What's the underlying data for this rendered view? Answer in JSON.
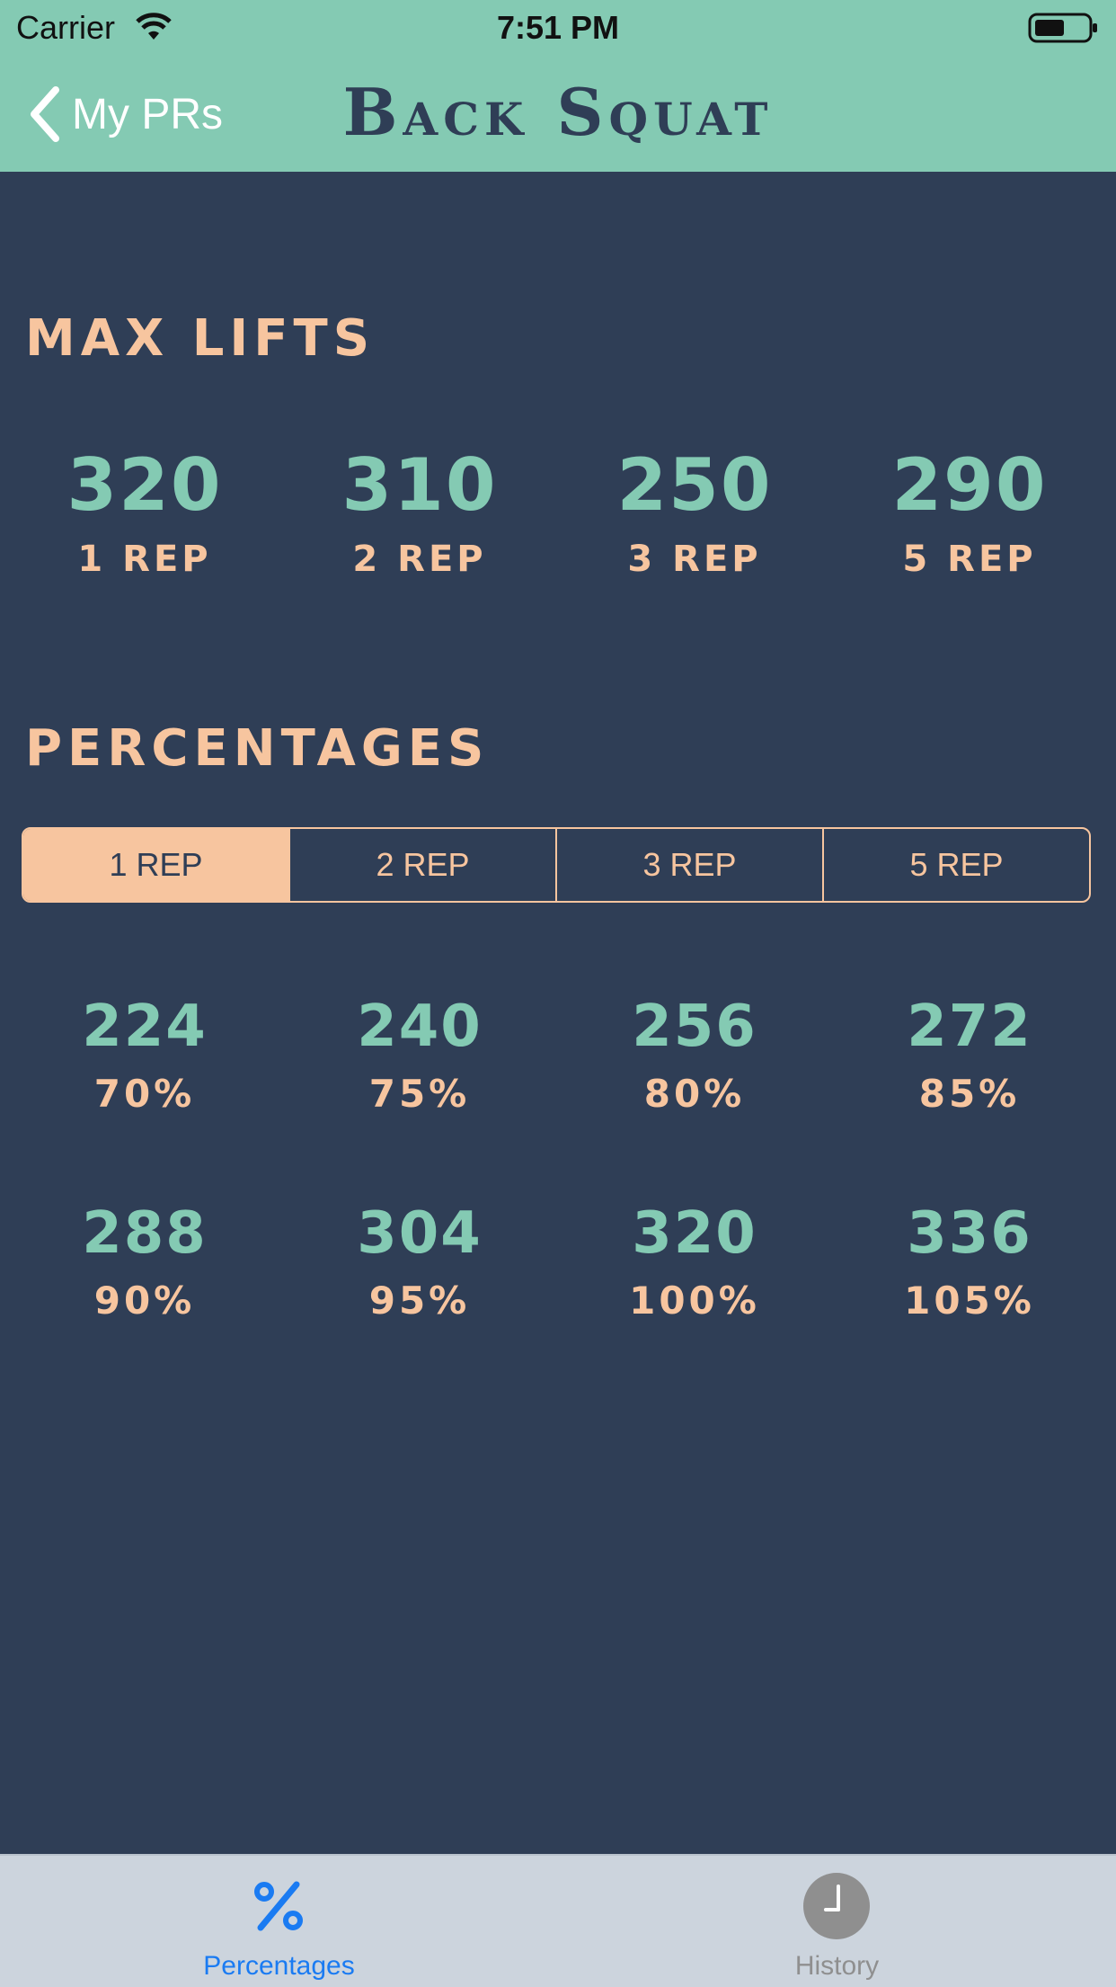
{
  "status_bar": {
    "carrier": "Carrier",
    "time": "7:51 PM"
  },
  "nav": {
    "back_label": "My PRs",
    "title": "Back Squat"
  },
  "max_lifts": {
    "title": "MAX LIFTS",
    "items": [
      {
        "value": "320",
        "label": "1 REP"
      },
      {
        "value": "310",
        "label": "2 REP"
      },
      {
        "value": "250",
        "label": "3 REP"
      },
      {
        "value": "290",
        "label": "5 REP"
      }
    ]
  },
  "percentages": {
    "title": "PERCENTAGES",
    "segments": [
      "1 REP",
      "2 REP",
      "3 REP",
      "5 REP"
    ],
    "selected_segment": "1 REP",
    "rows": [
      [
        {
          "value": "224",
          "percent": "70%"
        },
        {
          "value": "240",
          "percent": "75%"
        },
        {
          "value": "256",
          "percent": "80%"
        },
        {
          "value": "272",
          "percent": "85%"
        }
      ],
      [
        {
          "value": "288",
          "percent": "90%"
        },
        {
          "value": "304",
          "percent": "95%"
        },
        {
          "value": "320",
          "percent": "100%"
        },
        {
          "value": "336",
          "percent": "105%"
        }
      ]
    ]
  },
  "tab_bar": {
    "tabs": [
      {
        "label": "Percentages",
        "icon": "percent-icon",
        "active": true
      },
      {
        "label": "History",
        "icon": "clock-icon",
        "active": false
      }
    ]
  },
  "colors": {
    "background": "#2f3e56",
    "header": "#84cab3",
    "accent_teal": "#84cab3",
    "accent_peach": "#f7c59f",
    "tab_active": "#1a7bf2",
    "tab_inactive": "#8f8f8f"
  }
}
